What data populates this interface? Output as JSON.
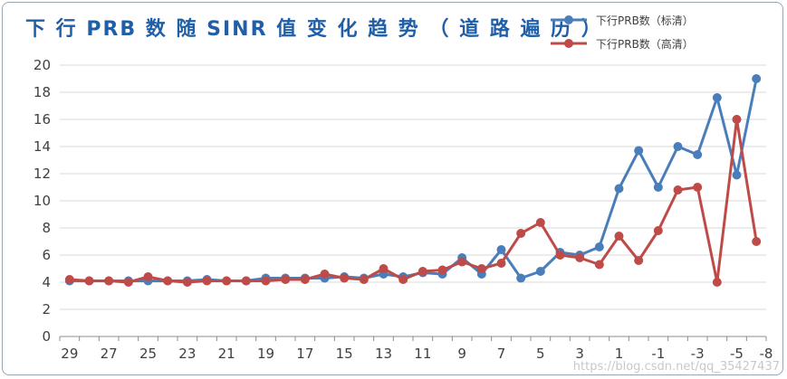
{
  "chart_data": {
    "type": "line",
    "title": "下 行 PRB 数 随 SINR 值 变 化 趋 势 （ 道 路 遍 历 ）",
    "xlabel": "",
    "ylabel": "",
    "ylim": [
      0,
      20
    ],
    "yticks": [
      0,
      2,
      4,
      6,
      8,
      10,
      12,
      14,
      16,
      18,
      20
    ],
    "x": [
      29,
      28,
      27,
      26,
      25,
      24,
      23,
      22,
      21,
      20,
      19,
      18,
      17,
      16,
      15,
      14,
      13,
      12,
      11,
      10,
      9,
      8,
      7,
      6,
      5,
      4,
      3,
      2,
      1,
      0,
      -1,
      -2,
      -3,
      -4,
      -5,
      -6
    ],
    "xticks": [
      "29",
      "27",
      "25",
      "23",
      "21",
      "19",
      "17",
      "15",
      "13",
      "11",
      "9",
      "7",
      "5",
      "3",
      "1",
      "-1",
      "-3",
      "-5",
      "-8"
    ],
    "grid": true,
    "legend": "top-right",
    "series": [
      {
        "name": "下行PRB数（标清）",
        "color": "#4a7ebb",
        "values": [
          4.1,
          4.1,
          4.1,
          4.1,
          4.1,
          4.1,
          4.1,
          4.2,
          4.1,
          4.1,
          4.3,
          4.3,
          4.3,
          4.3,
          4.4,
          4.3,
          4.6,
          4.4,
          4.7,
          4.6,
          5.8,
          4.6,
          6.4,
          4.3,
          4.8,
          6.2,
          6.0,
          6.6,
          10.9,
          13.7,
          11.0,
          14.0,
          13.4,
          17.6,
          11.9,
          19.0
        ]
      },
      {
        "name": "下行PRB数（高清）",
        "color": "#be4b48",
        "values": [
          4.2,
          4.1,
          4.1,
          4.0,
          4.4,
          4.1,
          4.0,
          4.1,
          4.1,
          4.1,
          4.1,
          4.2,
          4.2,
          4.6,
          4.3,
          4.2,
          5.0,
          4.2,
          4.8,
          4.9,
          5.5,
          5.0,
          5.4,
          7.6,
          8.4,
          6.0,
          5.8,
          5.3,
          7.4,
          5.6,
          7.8,
          10.8,
          11.0,
          4.0,
          16.0,
          7.0
        ]
      }
    ]
  },
  "watermark": "https://blog.csdn.net/qq_35427437"
}
